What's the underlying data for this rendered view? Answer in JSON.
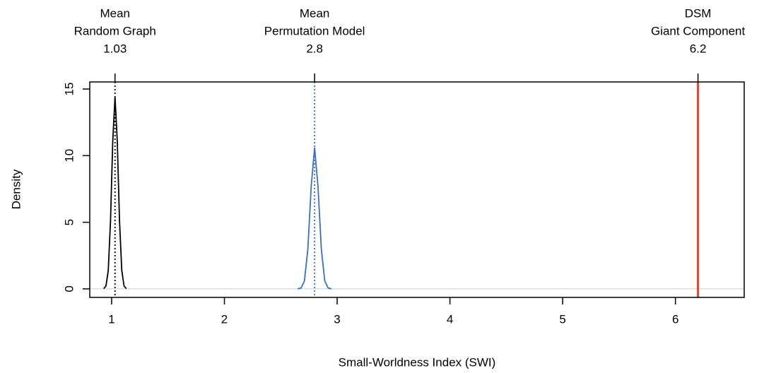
{
  "chart_data": {
    "type": "density",
    "xlabel": "Small-Worldness Index (SWI)",
    "ylabel": "Density",
    "xlim": [
      0.806,
      6.61
    ],
    "ylim": [
      -0.64,
      15.53
    ],
    "xticks": [
      1,
      2,
      3,
      4,
      5,
      6
    ],
    "yticks": [
      0,
      5,
      10,
      15
    ],
    "series": [
      {
        "color": "#000000",
        "x": [
          0.93,
          0.95,
          0.97,
          0.99,
          1.01,
          1.03,
          1.05,
          1.07,
          1.09,
          1.11,
          1.13
        ],
        "values": [
          0.02,
          0.22,
          1.38,
          5.08,
          11.1,
          14.4,
          11.1,
          5.08,
          1.38,
          0.22,
          0.02
        ]
      },
      {
        "color": "#3a6fc4",
        "x": [
          2.65,
          2.68,
          2.71,
          2.74,
          2.77,
          2.8,
          2.83,
          2.86,
          2.89,
          2.92,
          2.95
        ],
        "values": [
          0.0,
          0.07,
          0.6,
          2.97,
          7.71,
          10.6,
          7.71,
          2.97,
          0.6,
          0.07,
          0.0
        ]
      }
    ],
    "reference_lines": [
      {
        "label": [
          "Mean",
          "Random Graph"
        ],
        "x": 1.03,
        "color": "#000000",
        "style": "dotted"
      },
      {
        "label": [
          "Mean",
          "Permutation Model"
        ],
        "x": 2.8,
        "color": "#3a6fc4",
        "style": "dotted"
      },
      {
        "label": [
          "DSM",
          "Giant Component"
        ],
        "x": 6.2,
        "color": "#e8412c",
        "style": "solid"
      }
    ]
  }
}
